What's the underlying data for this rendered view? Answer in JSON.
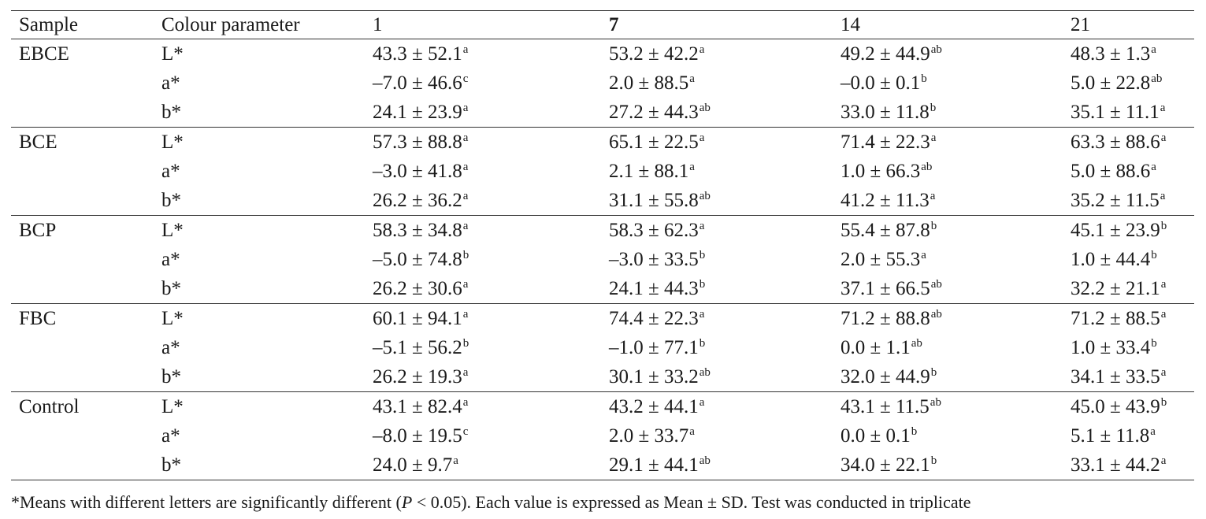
{
  "table": {
    "headers": [
      "Sample",
      "Colour parameter",
      "1",
      "7",
      "14",
      "21"
    ],
    "groups": [
      {
        "sample": "EBCE",
        "rows": [
          {
            "param": "L*",
            "cells": [
              {
                "value": "43.3 ± 52.1",
                "sup": "a"
              },
              {
                "value": "53.2 ± 42.2",
                "sup": "a"
              },
              {
                "value": "49.2 ± 44.9",
                "sup": "ab"
              },
              {
                "value": "48.3 ± 1.3",
                "sup": "a"
              }
            ]
          },
          {
            "param": "a*",
            "cells": [
              {
                "value": "–7.0 ± 46.6",
                "sup": "c"
              },
              {
                "value": "2.0 ± 88.5",
                "sup": "a"
              },
              {
                "value": "–0.0 ± 0.1",
                "sup": "b"
              },
              {
                "value": "5.0 ± 22.8",
                "sup": "ab"
              }
            ]
          },
          {
            "param": "b*",
            "cells": [
              {
                "value": "24.1 ± 23.9",
                "sup": "a"
              },
              {
                "value": "27.2 ± 44.3",
                "sup": "ab"
              },
              {
                "value": "33.0 ± 11.8",
                "sup": "b"
              },
              {
                "value": "35.1 ± 11.1",
                "sup": "a"
              }
            ]
          }
        ]
      },
      {
        "sample": "BCE",
        "rows": [
          {
            "param": "L*",
            "cells": [
              {
                "value": "57.3 ± 88.8",
                "sup": "a"
              },
              {
                "value": "65.1 ± 22.5",
                "sup": "a"
              },
              {
                "value": "71.4 ± 22.3",
                "sup": "a"
              },
              {
                "value": "63.3 ± 88.6",
                "sup": "a"
              }
            ]
          },
          {
            "param": "a*",
            "cells": [
              {
                "value": "–3.0 ± 41.8",
                "sup": "a"
              },
              {
                "value": "2.1 ± 88.1",
                "sup": "a"
              },
              {
                "value": "1.0 ± 66.3",
                "sup": "ab"
              },
              {
                "value": "5.0 ± 88.6",
                "sup": "a"
              }
            ]
          },
          {
            "param": "b*",
            "cells": [
              {
                "value": "26.2 ± 36.2",
                "sup": "a"
              },
              {
                "value": "31.1 ± 55.8",
                "sup": "ab"
              },
              {
                "value": "41.2 ± 11.3",
                "sup": "a"
              },
              {
                "value": "35.2 ± 11.5",
                "sup": "a"
              }
            ]
          }
        ]
      },
      {
        "sample": "BCP",
        "rows": [
          {
            "param": "L*",
            "cells": [
              {
                "value": "58.3 ± 34.8",
                "sup": "a"
              },
              {
                "value": "58.3 ± 62.3",
                "sup": "a"
              },
              {
                "value": "55.4 ± 87.8",
                "sup": "b"
              },
              {
                "value": "45.1 ± 23.9",
                "sup": "b"
              }
            ]
          },
          {
            "param": "a*",
            "cells": [
              {
                "value": "–5.0 ± 74.8",
                "sup": "b"
              },
              {
                "value": "–3.0 ± 33.5",
                "sup": "b"
              },
              {
                "value": "2.0 ± 55.3",
                "sup": "a"
              },
              {
                "value": "1.0 ± 44.4",
                "sup": "b"
              }
            ]
          },
          {
            "param": "b*",
            "cells": [
              {
                "value": "26.2 ± 30.6",
                "sup": "a"
              },
              {
                "value": "24.1 ± 44.3",
                "sup": "b"
              },
              {
                "value": "37.1 ± 66.5",
                "sup": "ab"
              },
              {
                "value": "32.2 ± 21.1",
                "sup": "a"
              }
            ]
          }
        ]
      },
      {
        "sample": "FBC",
        "rows": [
          {
            "param": "L*",
            "cells": [
              {
                "value": "60.1 ± 94.1",
                "sup": "a"
              },
              {
                "value": "74.4 ± 22.3",
                "sup": "a"
              },
              {
                "value": "71.2 ± 88.8",
                "sup": "ab"
              },
              {
                "value": "71.2 ± 88.5",
                "sup": "a"
              }
            ]
          },
          {
            "param": "a*",
            "cells": [
              {
                "value": "–5.1 ± 56.2",
                "sup": "b"
              },
              {
                "value": "–1.0 ± 77.1",
                "sup": "b"
              },
              {
                "value": "0.0 ± 1.1",
                "sup": "ab"
              },
              {
                "value": "1.0 ± 33.4",
                "sup": "b"
              }
            ]
          },
          {
            "param": "b*",
            "cells": [
              {
                "value": "26.2 ± 19.3",
                "sup": "a"
              },
              {
                "value": "30.1 ± 33.2",
                "sup": "ab"
              },
              {
                "value": "32.0 ± 44.9",
                "sup": "b"
              },
              {
                "value": "34.1 ± 33.5",
                "sup": "a"
              }
            ]
          }
        ]
      },
      {
        "sample": "Control",
        "rows": [
          {
            "param": "L*",
            "cells": [
              {
                "value": "43.1 ± 82.4",
                "sup": "a"
              },
              {
                "value": "43.2 ± 44.1",
                "sup": "a"
              },
              {
                "value": "43.1 ± 11.5",
                "sup": "ab"
              },
              {
                "value": "45.0 ± 43.9",
                "sup": "b"
              }
            ]
          },
          {
            "param": "a*",
            "cells": [
              {
                "value": "–8.0 ± 19.5",
                "sup": "c"
              },
              {
                "value": "2.0 ± 33.7",
                "sup": "a"
              },
              {
                "value": "0.0 ± 0.1",
                "sup": "b"
              },
              {
                "value": "5.1 ± 11.8",
                "sup": "a"
              }
            ]
          },
          {
            "param": "b*",
            "cells": [
              {
                "value": "24.0 ± 9.7",
                "sup": "a"
              },
              {
                "value": "29.1 ± 44.1",
                "sup": "ab"
              },
              {
                "value": "34.0 ± 22.1",
                "sup": "b"
              },
              {
                "value": "33.1 ± 44.2",
                "sup": "a"
              }
            ]
          }
        ]
      }
    ]
  },
  "footnote": {
    "before": "*Means with different letters are significantly different (",
    "italic": "P",
    "after": " < 0.05). Each value is expressed as Mean ± SD. Test was conducted in triplicate"
  }
}
